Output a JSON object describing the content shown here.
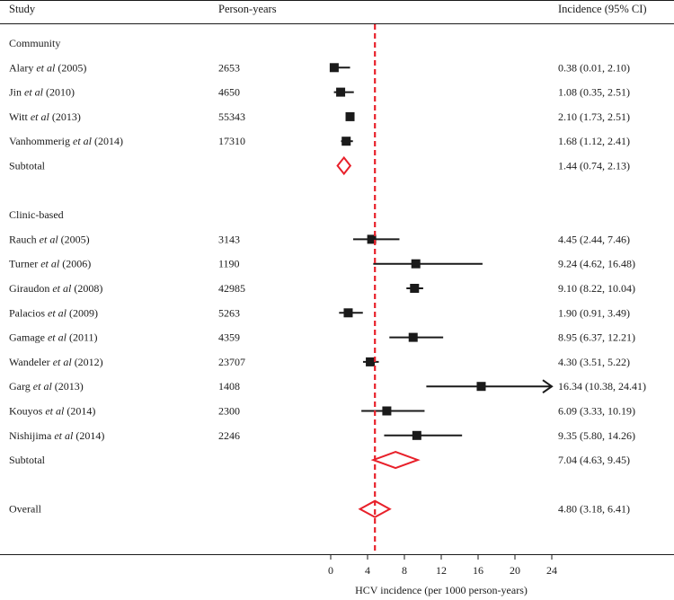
{
  "headers": {
    "study": "Study",
    "person_years": "Person-years",
    "incidence": "Incidence (95% CI)"
  },
  "colors": {
    "marker": "#1a1a1a",
    "summary_diamond": "#e8202a",
    "reference_line": "#e8202a"
  },
  "chart_data": {
    "type": "forest",
    "xlabel": "HCV incidence (per 1000 person-years)",
    "xlim": [
      0,
      24
    ],
    "xticks": [
      0,
      4,
      8,
      12,
      16,
      20,
      24
    ],
    "reference_value": 4.8,
    "groups": [
      {
        "label": "Community",
        "studies": [
          {
            "author": "Alary",
            "etal": "et al",
            "year": "(2005)",
            "person_years": "2653",
            "estimate": 0.38,
            "lower": 0.01,
            "upper": 2.1,
            "ci_text": "0.38 (0.01, 2.10)"
          },
          {
            "author": "Jin",
            "etal": "et al",
            "year": "(2010)",
            "person_years": "4650",
            "estimate": 1.08,
            "lower": 0.35,
            "upper": 2.51,
            "ci_text": "1.08 (0.35, 2.51)"
          },
          {
            "author": "Witt",
            "etal": "et al",
            "year": "(2013)",
            "person_years": "55343",
            "estimate": 2.1,
            "lower": 1.73,
            "upper": 2.51,
            "ci_text": "2.10 (1.73, 2.51)"
          },
          {
            "author": "Vanhommerig",
            "etal": "et al",
            "year": "(2014)",
            "person_years": "17310",
            "estimate": 1.68,
            "lower": 1.12,
            "upper": 2.41,
            "ci_text": "1.68 (1.12, 2.41)"
          }
        ],
        "subtotal": {
          "label": "Subtotal",
          "estimate": 1.44,
          "lower": 0.74,
          "upper": 2.13,
          "ci_text": "1.44 (0.74, 2.13)"
        }
      },
      {
        "label": "Clinic-based",
        "studies": [
          {
            "author": "Rauch",
            "etal": "et al",
            "year": "(2005)",
            "person_years": "3143",
            "estimate": 4.45,
            "lower": 2.44,
            "upper": 7.46,
            "ci_text": "4.45 (2.44, 7.46)"
          },
          {
            "author": "Turner",
            "etal": "et al",
            "year": "(2006)",
            "person_years": "1190",
            "estimate": 9.24,
            "lower": 4.62,
            "upper": 16.48,
            "ci_text": "9.24 (4.62, 16.48)"
          },
          {
            "author": "Giraudon",
            "etal": "et al",
            "year": "(2008)",
            "person_years": "42985",
            "estimate": 9.1,
            "lower": 8.22,
            "upper": 10.04,
            "ci_text": "9.10 (8.22, 10.04)"
          },
          {
            "author": "Palacios",
            "etal": "et al",
            "year": "(2009)",
            "person_years": "5263",
            "estimate": 1.9,
            "lower": 0.91,
            "upper": 3.49,
            "ci_text": "1.90 (0.91, 3.49)"
          },
          {
            "author": "Gamage",
            "etal": "et al",
            "year": "(2011)",
            "person_years": "4359",
            "estimate": 8.95,
            "lower": 6.37,
            "upper": 12.21,
            "ci_text": "8.95 (6.37, 12.21)"
          },
          {
            "author": "Wandeler",
            "etal": "et al",
            "year": "(2012)",
            "person_years": "23707",
            "estimate": 4.3,
            "lower": 3.51,
            "upper": 5.22,
            "ci_text": "4.30 (3.51, 5.22)"
          },
          {
            "author": "Garg",
            "etal": "et al",
            "year": "(2013)",
            "person_years": "1408",
            "estimate": 16.34,
            "lower": 10.38,
            "upper": 24.41,
            "ci_text": "16.34 (10.38, 24.41)"
          },
          {
            "author": "Kouyos",
            "etal": "et al",
            "year": "(2014)",
            "person_years": "2300",
            "estimate": 6.09,
            "lower": 3.33,
            "upper": 10.19,
            "ci_text": "6.09 (3.33, 10.19)"
          },
          {
            "author": "Nishijima",
            "etal": "et al",
            "year": "(2014)",
            "person_years": "2246",
            "estimate": 9.35,
            "lower": 5.8,
            "upper": 14.26,
            "ci_text": "9.35 (5.80, 14.26)"
          }
        ],
        "subtotal": {
          "label": "Subtotal",
          "estimate": 7.04,
          "lower": 4.63,
          "upper": 9.45,
          "ci_text": "7.04 (4.63, 9.45)"
        }
      }
    ],
    "overall": {
      "label": "Overall",
      "estimate": 4.8,
      "lower": 3.18,
      "upper": 6.41,
      "ci_text": "4.80 (3.18, 6.41)"
    }
  }
}
